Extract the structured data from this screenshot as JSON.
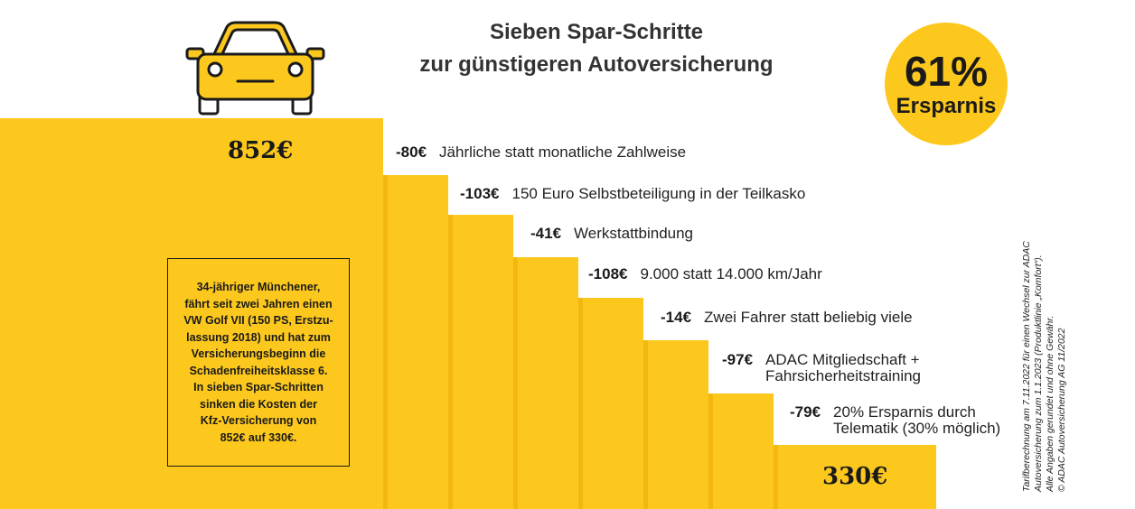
{
  "title": {
    "line1": "Sieben Spar-Schritte",
    "line2": "zur günstigeren Autoversicherung"
  },
  "badge": {
    "percent": "61%",
    "label": "Ersparnis"
  },
  "colors": {
    "bar": "#fcc81d",
    "barShadow": "#f3b80f",
    "car": "#fcc81d",
    "text": "#1a1a1a"
  },
  "chart_data": {
    "type": "bar",
    "title": "Sieben Spar-Schritte zur günstigeren Autoversicherung",
    "start_value": 852,
    "start_label": "852€",
    "end_value": 330,
    "end_label": "330€",
    "steps": [
      {
        "saving": -80,
        "saving_label": "-80€",
        "lines": [
          "Jährliche statt monatliche Zahlweise"
        ]
      },
      {
        "saving": -103,
        "saving_label": "-103€",
        "lines": [
          "150 Euro Selbstbeteiligung in der Teilkasko"
        ]
      },
      {
        "saving": -41,
        "saving_label": "-41€",
        "lines": [
          "Werkstattbindung"
        ]
      },
      {
        "saving": -108,
        "saving_label": "-108€",
        "lines": [
          "9.000 statt 14.000 km/Jahr"
        ]
      },
      {
        "saving": -14,
        "saving_label": "-14€",
        "lines": [
          "Zwei Fahrer statt beliebig viele"
        ]
      },
      {
        "saving": -97,
        "saving_label": "-97€",
        "lines": [
          "ADAC Mitgliedschaft +",
          "Fahrsicherheitstraining"
        ]
      },
      {
        "saving": -79,
        "saving_label": "-79€",
        "lines": [
          "20% Ersparnis durch",
          "Telematik (30% möglich)"
        ]
      }
    ]
  },
  "info_box": {
    "lines": [
      "34-jähriger Münchener,",
      "fährt seit zwei Jahren einen",
      "VW Golf VII (150 PS, Erstzu-",
      "lassung 2018) und hat zum",
      "Versicherungsbeginn die",
      "Schadenfreiheitsklasse 6.",
      "In sieben Spar-Schritten",
      "sinken die Kosten der",
      "Kfz-Versicherung von",
      "852€ auf 330€."
    ]
  },
  "side_note": {
    "lines": [
      "Tarifberechnung am 7.11.2022 für einen Wechsel zur ADAC",
      "Autoversicherung zum 1.1.2023 (Produktlinie „Komfort“).",
      "Alle Angaben gerundet und ohne Gewähr.",
      "© ADAC Autoversicherung AG 11/2022"
    ]
  }
}
